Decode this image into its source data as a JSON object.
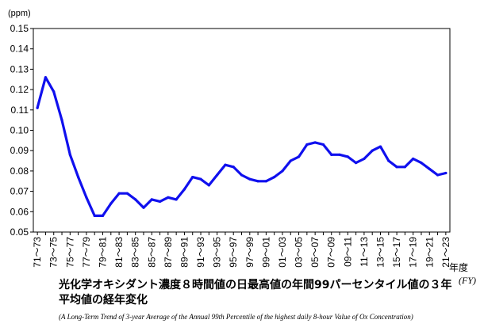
{
  "chart_data": {
    "type": "line",
    "unit_label": "(ppm)",
    "xlabel": "年度",
    "xlabel_en": "(FY)",
    "ylim": [
      0.05,
      0.15
    ],
    "yticks": [
      0.05,
      0.06,
      0.07,
      0.08,
      0.09,
      0.1,
      0.11,
      0.12,
      0.13,
      0.14,
      0.15
    ],
    "ytick_labels": [
      "0.05",
      "0.06",
      "0.07",
      "0.08",
      "0.09",
      "0.10",
      "0.11",
      "0.12",
      "0.13",
      "0.14",
      "0.15"
    ],
    "grid": false,
    "line_color": "#1010ee",
    "categories": [
      "71～73",
      "72～74",
      "73～75",
      "74～76",
      "75～77",
      "76～78",
      "77～79",
      "78～80",
      "79～81",
      "80～82",
      "81～83",
      "82～84",
      "83～85",
      "84～86",
      "85～87",
      "86～88",
      "87～89",
      "88～90",
      "89～91",
      "90～92",
      "91～93",
      "92～94",
      "93～95",
      "94～96",
      "95～97",
      "96～98",
      "97～99",
      "98～00",
      "99～01",
      "00～02",
      "01～03",
      "02～04",
      "03～05",
      "04～06",
      "05～07",
      "06～08",
      "07～09",
      "08～10",
      "09～11",
      "10～12",
      "11～13",
      "12～14",
      "13～15",
      "14～16",
      "15～17",
      "16～18",
      "17～19",
      "18～20",
      "19～21",
      "20～22",
      "21～23"
    ],
    "tick_labels_shown": [
      "71～73",
      "73～75",
      "75～77",
      "77～79",
      "79～81",
      "81～83",
      "83～85",
      "85～87",
      "87～89",
      "89～91",
      "91～93",
      "93～95",
      "95～97",
      "97～99",
      "99～01",
      "01～03",
      "03～05",
      "05～07",
      "07～09",
      "09～11",
      "11～13",
      "13～15",
      "15～17",
      "17～19",
      "19～21",
      "21～23"
    ],
    "values": [
      0.111,
      0.126,
      0.119,
      0.105,
      0.088,
      0.077,
      0.067,
      0.058,
      0.058,
      0.064,
      0.069,
      0.069,
      0.066,
      0.062,
      0.066,
      0.065,
      0.067,
      0.066,
      0.071,
      0.077,
      0.076,
      0.073,
      0.078,
      0.083,
      0.082,
      0.078,
      0.076,
      0.075,
      0.075,
      0.077,
      0.08,
      0.085,
      0.087,
      0.093,
      0.094,
      0.093,
      0.088,
      0.088,
      0.087,
      0.084,
      0.086,
      0.09,
      0.092,
      0.085,
      0.082,
      0.082,
      0.086,
      0.084,
      0.081,
      0.078,
      0.079
    ]
  },
  "caption": {
    "title_ja": "光化学オキシダント濃度８時間値の日最高値の年間99パーセンタイル値の３年平均値の経年変化",
    "title_en": "(A Long-Term Trend of 3-year Average of the Annual 99th Percentile of the highest daily 8-hour Value of Ox Concentration)"
  }
}
